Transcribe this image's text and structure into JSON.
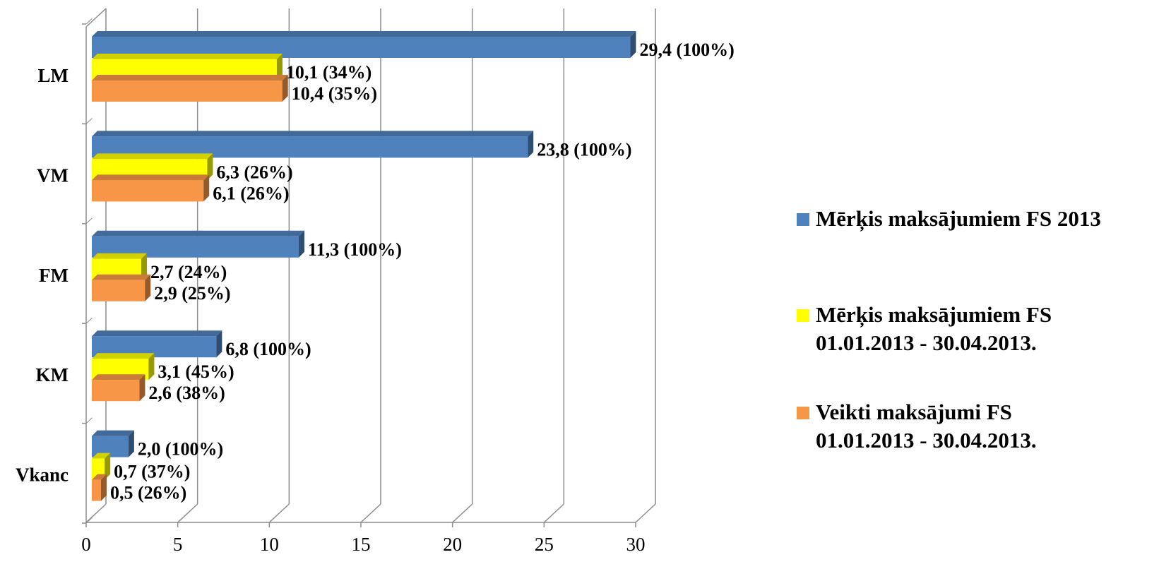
{
  "chart_data": {
    "type": "bar",
    "orientation": "horizontal",
    "three_d": true,
    "categories": [
      "LM",
      "VM",
      "FM",
      "KM",
      "Vkanc"
    ],
    "series": [
      {
        "name": "Mērķis maksājumiem FS 2013",
        "color": "#4F81BD",
        "values": [
          29.4,
          23.8,
          11.3,
          6.8,
          2.0
        ],
        "labels": [
          "29,4 (100%)",
          "23,8 (100%)",
          "11,3 (100%)",
          "6,8 (100%)",
          "2,0 (100%)"
        ]
      },
      {
        "name": "Mērķis maksājumiem FS\n01.01.2013 - 30.04.2013.",
        "color": "#FFFF00",
        "values": [
          10.1,
          6.3,
          2.7,
          3.1,
          0.7
        ],
        "labels": [
          "10,1 (34%)",
          "6,3 (26%)",
          "2,7 (24%)",
          "3,1 (45%)",
          "0,7 (37%)"
        ]
      },
      {
        "name": "Veikti maksājumi FS\n01.01.2013 - 30.04.2013.",
        "color": "#F79646",
        "values": [
          10.4,
          6.1,
          2.9,
          2.6,
          0.5
        ],
        "labels": [
          "10,4 (35%)",
          "6,1 (26%)",
          "2,9 (25%)",
          "2,6 (38%)",
          "0,5 (26%)"
        ]
      }
    ],
    "xlim": [
      0,
      30
    ],
    "xticks": [
      "0",
      "5",
      "10",
      "15",
      "20",
      "25",
      "30"
    ],
    "grid": true,
    "legend_position": "right"
  }
}
